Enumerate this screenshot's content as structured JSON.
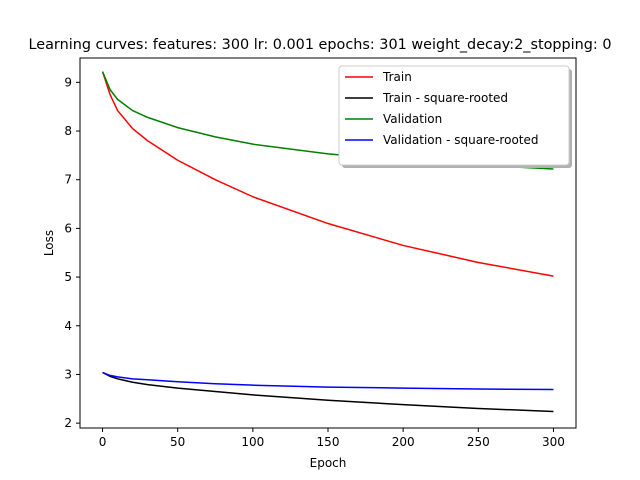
{
  "chart_data": {
    "type": "line",
    "title": "Learning curves: features: 300 lr: 0.001 epochs: 301 weight_decay:2_stopping: 0",
    "xlabel": "Epoch",
    "ylabel": "Loss",
    "xlim": [
      -15,
      315
    ],
    "ylim": [
      1.9,
      9.5
    ],
    "xticks": [
      0,
      50,
      100,
      150,
      200,
      250,
      300
    ],
    "yticks": [
      2,
      3,
      4,
      5,
      6,
      7,
      8,
      9
    ],
    "grid": false,
    "legend_position": "upper right",
    "x": [
      0,
      5,
      10,
      20,
      30,
      50,
      75,
      100,
      150,
      200,
      250,
      300
    ],
    "series": [
      {
        "name": "Train",
        "color": "#ff0000",
        "values": [
          9.22,
          8.75,
          8.42,
          8.05,
          7.8,
          7.4,
          7.0,
          6.65,
          6.1,
          5.65,
          5.3,
          5.02
        ]
      },
      {
        "name": "Train - square-rooted",
        "color": "#000000",
        "values": [
          3.04,
          2.96,
          2.91,
          2.84,
          2.79,
          2.72,
          2.65,
          2.58,
          2.47,
          2.38,
          2.3,
          2.24
        ]
      },
      {
        "name": "Validation",
        "color": "#008000",
        "values": [
          9.22,
          8.85,
          8.65,
          8.42,
          8.28,
          8.07,
          7.88,
          7.73,
          7.53,
          7.4,
          7.3,
          7.22
        ]
      },
      {
        "name": "Validation - square-rooted",
        "color": "#0000ff",
        "values": [
          3.04,
          2.98,
          2.95,
          2.91,
          2.89,
          2.85,
          2.81,
          2.78,
          2.74,
          2.72,
          2.7,
          2.69
        ]
      }
    ]
  }
}
